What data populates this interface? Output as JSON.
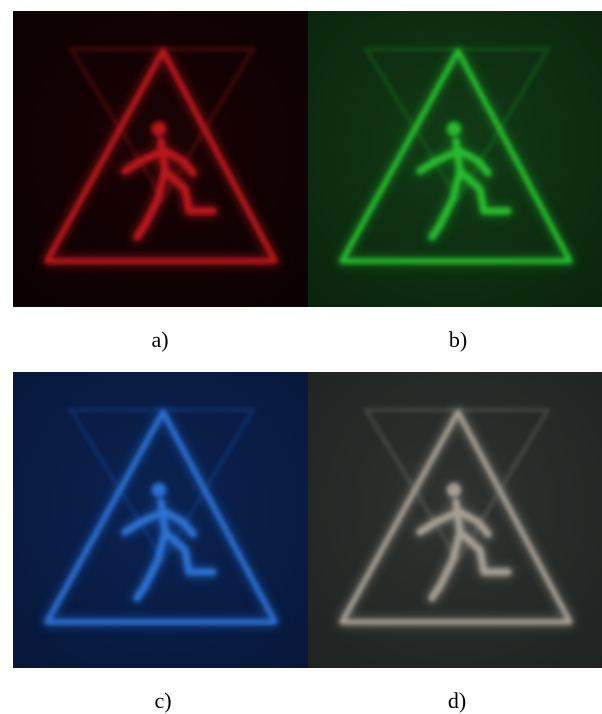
{
  "panels": [
    {
      "id": "a",
      "caption": "a)",
      "background": "#1a0304",
      "vignette": "#0a0102",
      "glow": "#b01a1e",
      "stroke": "#c0181c"
    },
    {
      "id": "b",
      "caption": "b)",
      "background": "#123a16",
      "vignette": "#0a230c",
      "glow": "#1f9a25",
      "stroke": "#28c02d"
    },
    {
      "id": "c",
      "caption": "c)",
      "background": "#0b2250",
      "vignette": "#07173a",
      "glow": "#1f5fc0",
      "stroke": "#2f73d6"
    },
    {
      "id": "d",
      "caption": "d)",
      "background": "#2f3330",
      "vignette": "#1e2220",
      "glow": "#8e8a80",
      "stroke": "#a8a398"
    }
  ],
  "icon": "running-figure-warning-triangle-icon"
}
